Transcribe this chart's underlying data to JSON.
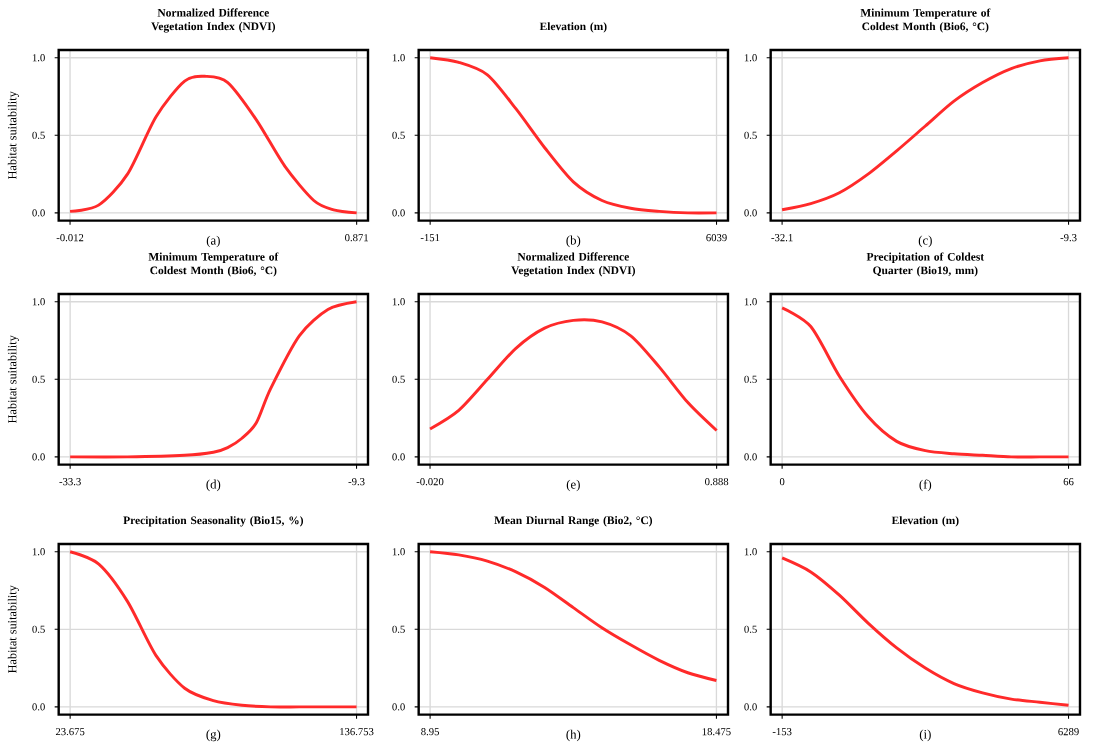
{
  "chart_data": [
    {
      "type": "line",
      "title": "Normalized Difference Vegetation Index (NDVI)",
      "xlabel": "(a)",
      "ylabel": "Habitat suitability",
      "xlim": [
        -0.047,
        0.906
      ],
      "xticks": [
        -0.012,
        0.871
      ],
      "ylim": [
        -0.05,
        1.05
      ],
      "yticks": [
        {
          "value": 0,
          "label": "0.0"
        },
        {
          "value": 0.5,
          "label": "0.5"
        },
        {
          "value": 1,
          "label": "1.0"
        }
      ],
      "grid": true,
      "x": [
        -0.012,
        0.076,
        0.165,
        0.253,
        0.341,
        0.407,
        0.474,
        0.562,
        0.65,
        0.739,
        0.8,
        0.871
      ],
      "series": [
        {
          "color": "#ff2a2a",
          "values": [
            0.01,
            0.05,
            0.25,
            0.62,
            0.85,
            0.88,
            0.84,
            0.6,
            0.3,
            0.08,
            0.02,
            0.0
          ]
        }
      ]
    },
    {
      "type": "line",
      "title": "Elevation (m)",
      "xlabel": "(b)",
      "xlim": [
        -399,
        6287
      ],
      "xticks": [
        -151,
        6039
      ],
      "ylim": [
        -0.05,
        1.05
      ],
      "yticks": [
        {
          "value": 0,
          "label": "0.0"
        },
        {
          "value": 0.5,
          "label": "0.5"
        },
        {
          "value": 1,
          "label": "1.0"
        }
      ],
      "grid": true,
      "x": [
        -151,
        468,
        1087,
        1706,
        2325,
        2944,
        3563,
        4182,
        4801,
        5420,
        6039
      ],
      "series": [
        {
          "color": "#ff2a2a",
          "values": [
            1.0,
            0.97,
            0.89,
            0.67,
            0.42,
            0.2,
            0.08,
            0.03,
            0.01,
            0.0,
            0.0
          ]
        }
      ]
    },
    {
      "type": "line",
      "title": "Minimum Temperature of Coldest Month (Bio6, °C)",
      "xlabel": "(c)",
      "xlim": [
        -33.01,
        -8.39
      ],
      "xticks": [
        -32.1,
        -9.3
      ],
      "ylim": [
        -0.05,
        1.05
      ],
      "yticks": [
        {
          "value": 0,
          "label": "0.0"
        },
        {
          "value": 0.5,
          "label": "0.5"
        },
        {
          "value": 1,
          "label": "1.0"
        }
      ],
      "grid": true,
      "x": [
        -32.1,
        -29.82,
        -27.54,
        -25.26,
        -22.98,
        -20.7,
        -18.42,
        -16.14,
        -13.86,
        -11.58,
        -9.3
      ],
      "series": [
        {
          "color": "#ff2a2a",
          "values": [
            0.02,
            0.06,
            0.13,
            0.25,
            0.4,
            0.56,
            0.72,
            0.84,
            0.93,
            0.98,
            1.0
          ]
        }
      ]
    },
    {
      "type": "line",
      "title": "Minimum Temperature of Coldest Month (Bio6, °C)",
      "xlabel": "(d)",
      "ylabel": "Habitat suitability",
      "xlim": [
        -34.26,
        -8.34
      ],
      "xticks": [
        -33.3,
        -9.3
      ],
      "ylim": [
        -0.05,
        1.05
      ],
      "yticks": [
        {
          "value": 0,
          "label": "0.0"
        },
        {
          "value": 0.5,
          "label": "0.5"
        },
        {
          "value": 1,
          "label": "1.0"
        }
      ],
      "grid": true,
      "x": [
        -33.3,
        -28.5,
        -23.7,
        -21.3,
        -20.1,
        -18.9,
        -17.7,
        -16.5,
        -14.1,
        -11.7,
        -9.3
      ],
      "series": [
        {
          "color": "#ff2a2a",
          "values": [
            0.0,
            0.0,
            0.01,
            0.03,
            0.06,
            0.12,
            0.22,
            0.44,
            0.78,
            0.95,
            1.0
          ]
        }
      ]
    },
    {
      "type": "line",
      "title": "Normalized Difference Vegetation Index (NDVI)",
      "xlabel": "(e)",
      "xlim": [
        -0.056,
        0.924
      ],
      "xticks": [
        {
          "value": -0.02,
          "label": "-0.020"
        },
        0.888
      ],
      "ylim": [
        -0.05,
        1.05
      ],
      "yticks": [
        {
          "value": 0,
          "label": "0.0"
        },
        {
          "value": 0.5,
          "label": "0.5"
        },
        {
          "value": 1,
          "label": "1.0"
        }
      ],
      "grid": true,
      "x": [
        -0.02,
        0.071,
        0.162,
        0.252,
        0.343,
        0.434,
        0.525,
        0.616,
        0.706,
        0.797,
        0.888
      ],
      "series": [
        {
          "color": "#ff2a2a",
          "values": [
            0.18,
            0.3,
            0.5,
            0.7,
            0.83,
            0.88,
            0.87,
            0.78,
            0.58,
            0.35,
            0.17
          ]
        }
      ]
    },
    {
      "type": "line",
      "title": "Precipitation of Coldest Quarter (Bio19, mm)",
      "xlabel": "(f)",
      "xlim": [
        -2.64,
        68.64
      ],
      "xticks": [
        0,
        66
      ],
      "ylim": [
        -0.05,
        1.05
      ],
      "yticks": [
        {
          "value": 0,
          "label": "0.0"
        },
        {
          "value": 0.5,
          "label": "0.5"
        },
        {
          "value": 1,
          "label": "1.0"
        }
      ],
      "grid": true,
      "x": [
        0,
        6.6,
        13.2,
        19.8,
        26.4,
        33,
        39.6,
        46.2,
        52.8,
        59.4,
        66
      ],
      "series": [
        {
          "color": "#ff2a2a",
          "values": [
            0.96,
            0.84,
            0.52,
            0.26,
            0.1,
            0.04,
            0.02,
            0.01,
            0.0,
            0.0,
            0.0
          ]
        }
      ]
    },
    {
      "type": "line",
      "title": "Precipitation Seasonality (Bio15, %)",
      "xlabel": "(g)",
      "ylabel": "Habitat suitability",
      "xlim": [
        19.15,
        141.28
      ],
      "xticks": [
        23.675,
        136.753
      ],
      "ylim": [
        -0.05,
        1.05
      ],
      "yticks": [
        {
          "value": 0,
          "label": "0.0"
        },
        {
          "value": 0.5,
          "label": "0.5"
        },
        {
          "value": 1,
          "label": "1.0"
        }
      ],
      "grid": true,
      "x": [
        23.675,
        34.983,
        46.291,
        57.598,
        68.906,
        80.214,
        91.522,
        102.83,
        114.137,
        125.445,
        136.753
      ],
      "series": [
        {
          "color": "#ff2a2a",
          "values": [
            1.0,
            0.92,
            0.68,
            0.33,
            0.12,
            0.04,
            0.01,
            0.0,
            0.0,
            0.0,
            0.0
          ]
        }
      ]
    },
    {
      "type": "line",
      "title": "Mean Diurnal Range (Bio2, °C)",
      "xlabel": "(h)",
      "xlim": [
        8.57,
        18.86
      ],
      "xticks": [
        8.95,
        18.475
      ],
      "ylim": [
        -0.05,
        1.05
      ],
      "yticks": [
        {
          "value": 0,
          "label": "0.0"
        },
        {
          "value": 0.5,
          "label": "0.5"
        },
        {
          "value": 1,
          "label": "1.0"
        }
      ],
      "grid": true,
      "x": [
        8.95,
        9.903,
        10.855,
        11.808,
        12.76,
        13.713,
        14.665,
        15.618,
        16.57,
        17.523,
        18.475
      ],
      "series": [
        {
          "color": "#ff2a2a",
          "values": [
            1.0,
            0.98,
            0.94,
            0.87,
            0.77,
            0.64,
            0.51,
            0.4,
            0.3,
            0.22,
            0.17
          ]
        }
      ]
    },
    {
      "type": "line",
      "title": "Elevation (m)",
      "xlabel": "(i)",
      "xlim": [
        -411,
        6547
      ],
      "xticks": [
        -153,
        6289
      ],
      "ylim": [
        -0.05,
        1.05
      ],
      "yticks": [
        {
          "value": 0,
          "label": "0.0"
        },
        {
          "value": 0.5,
          "label": "0.5"
        },
        {
          "value": 1,
          "label": "1.0"
        }
      ],
      "grid": true,
      "x": [
        -153,
        491,
        1135,
        1780,
        2424,
        3068,
        3712,
        4356,
        5001,
        5645,
        6289
      ],
      "series": [
        {
          "color": "#ff2a2a",
          "values": [
            0.96,
            0.87,
            0.72,
            0.54,
            0.38,
            0.25,
            0.15,
            0.09,
            0.05,
            0.03,
            0.01
          ]
        }
      ]
    }
  ]
}
